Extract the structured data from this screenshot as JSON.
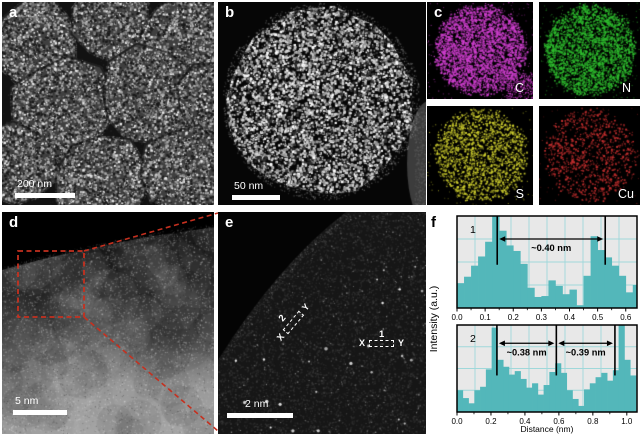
{
  "panels": {
    "a": {
      "label": "a",
      "scale_bar": "200 nm"
    },
    "b": {
      "label": "b",
      "scale_bar": "50 nm"
    },
    "c": {
      "label": "c",
      "maps": [
        {
          "element": "C",
          "color": "#cf3fcf"
        },
        {
          "element": "N",
          "color": "#2fbf2f"
        },
        {
          "element": "S",
          "color": "#cfcf2f"
        },
        {
          "element": "Cu",
          "color": "#c62f2f"
        }
      ]
    },
    "d": {
      "label": "d",
      "scale_bar": "5 nm",
      "zoom_box_color": "#c5301f"
    },
    "e": {
      "label": "e",
      "scale_bar": "2 nm",
      "profile_markers": [
        {
          "id": "1",
          "start": "X",
          "end": "Y"
        },
        {
          "id": "2",
          "start": "X",
          "end": "Y"
        }
      ]
    },
    "f": {
      "label": "f"
    }
  },
  "chart_data": [
    {
      "type": "bar",
      "series_label": "1",
      "ylabel": "Intensity (a.u.)",
      "xlabel": "",
      "x_start": 0,
      "bin_width": 0.025,
      "xlim": [
        0,
        0.64
      ],
      "xticks": [
        0,
        0.1,
        0.2,
        0.3,
        0.4,
        0.5,
        0.6
      ],
      "minor_tick_step": 0.05,
      "grid": true,
      "legend": "none",
      "bar_color": "#53b7ba",
      "plot_bg": "#e8e8e8",
      "grid_color": "#9fd8da",
      "values": [
        0.27,
        0.34,
        0.46,
        0.56,
        0.72,
        1.0,
        0.84,
        0.68,
        0.62,
        0.48,
        0.22,
        0.12,
        0.13,
        0.3,
        0.24,
        0.15,
        0.2,
        0.03,
        0.35,
        0.78,
        0.63,
        0.55,
        0.46,
        0.35,
        0.17,
        0.25
      ],
      "peak_markers": [
        0.143,
        0.527
      ],
      "annotations": [
        {
          "text": "~0.40 nm",
          "x1": 0.143,
          "x2": 0.527
        }
      ]
    },
    {
      "type": "bar",
      "series_label": "2",
      "ylabel": "Intensity (a.u.)",
      "xlabel": "Distance (nm)",
      "x_start": 0,
      "bin_width": 0.034,
      "xlim": [
        0,
        1.06
      ],
      "xticks": [
        0,
        0.2,
        0.4,
        0.6,
        0.8,
        1.0
      ],
      "minor_tick_step": 0.1,
      "grid": true,
      "legend": "none",
      "bar_color": "#53b7ba",
      "plot_bg": "#e8e8e8",
      "grid_color": "#9fd8da",
      "values": [
        0.25,
        0.16,
        0.1,
        0.25,
        0.29,
        0.49,
        0.97,
        0.6,
        0.52,
        0.43,
        0.47,
        0.38,
        0.28,
        0.33,
        0.2,
        0.31,
        0.46,
        0.56,
        0.45,
        0.25,
        0.15,
        0.07,
        0.26,
        0.33,
        0.4,
        0.45,
        0.36,
        0.48,
        1.0,
        0.6,
        0.42
      ],
      "peak_markers": [
        0.235,
        0.585,
        0.93
      ],
      "annotations": [
        {
          "text": "~0.38 nm",
          "x1": 0.235,
          "x2": 0.585
        },
        {
          "text": "~0.39 nm",
          "x1": 0.585,
          "x2": 0.93
        }
      ]
    }
  ]
}
